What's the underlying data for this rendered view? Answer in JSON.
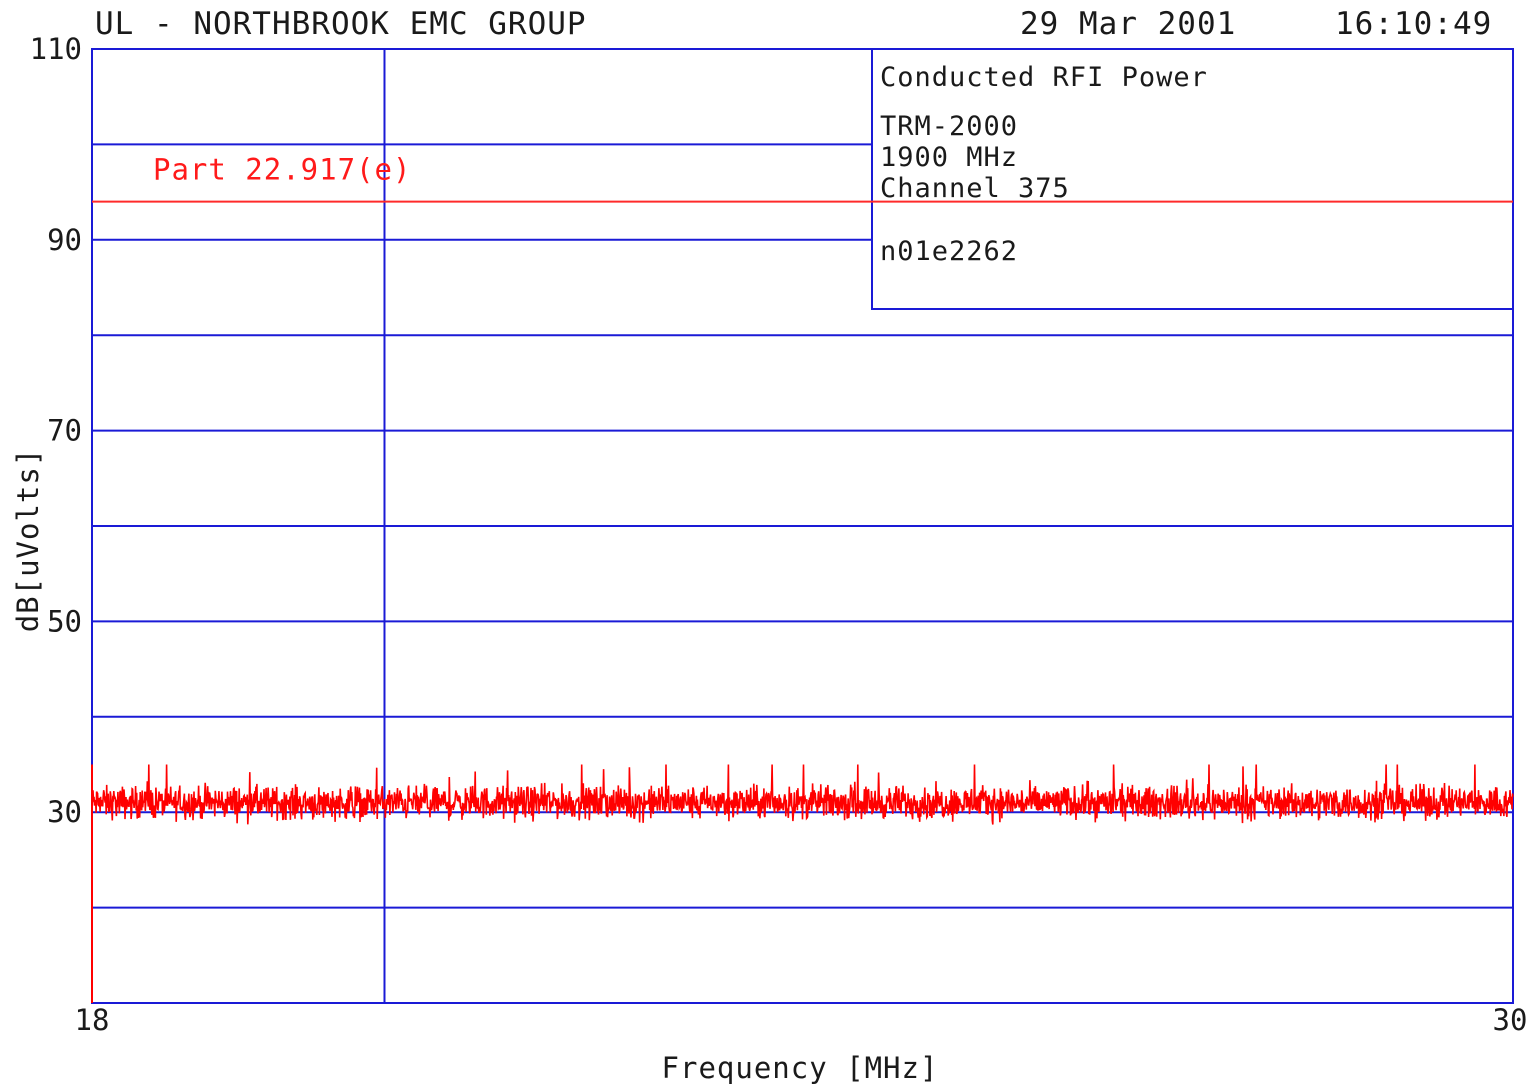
{
  "header": {
    "left": "UL - NORTHBROOK EMC GROUP",
    "date": "29 Mar 2001",
    "time": "16:10:49"
  },
  "info_box": {
    "title": "Conducted RFI Power",
    "lines": [
      "TRM-2000",
      "1900 MHz",
      "Channel 375"
    ],
    "file_id": "n01e2262"
  },
  "colors": {
    "grid": "#1a1ad6",
    "trace": "#ff0000",
    "limit": "#ff2a2a",
    "text": "#1a1a1a"
  },
  "chart_data": {
    "type": "line",
    "title": "",
    "xlabel": "Frequency [MHz]",
    "ylabel": "dB[uVolts]",
    "xlim": [
      18,
      30
    ],
    "ylim": [
      10,
      110
    ],
    "x_tick_labels": [
      "18",
      "30"
    ],
    "y_tick_labels": [
      "110",
      "90",
      "70",
      "50",
      "30"
    ],
    "y_grid_step": 10,
    "x_grid_lines": [
      20.47
    ],
    "grid": true,
    "limit_line": {
      "name": "Part 22.917(e)",
      "y": 94
    },
    "series": [
      {
        "type": "noise-band",
        "x_start": 18,
        "x_end": 30,
        "mean_level": 31,
        "band_low": 28.5,
        "band_high": 33.5,
        "peak_max": 35
      }
    ]
  }
}
